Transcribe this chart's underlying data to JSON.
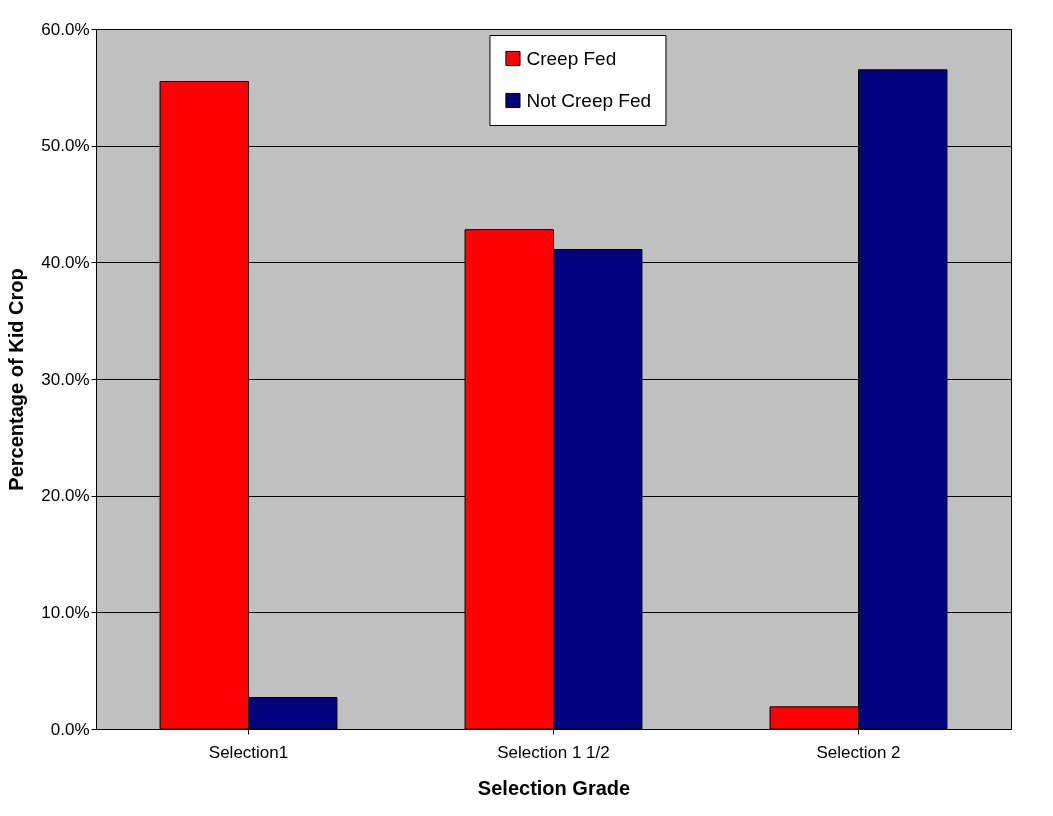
{
  "chart_data": {
    "type": "bar",
    "xlabel": "Selection Grade",
    "ylabel": "Percentage of Kid Crop",
    "categories": [
      "Selection1",
      "Selection 1 1/2",
      "Selection 2"
    ],
    "series": [
      {
        "name": "Creep Fed",
        "color": "#ff0000",
        "values": [
          55.5,
          42.8,
          1.9
        ]
      },
      {
        "name": "Not Creep Fed",
        "color": "#000080",
        "values": [
          2.7,
          41.1,
          56.5
        ]
      }
    ],
    "ylim": [
      0,
      60
    ],
    "yticks": [
      {
        "value": 0,
        "label": "0.0%"
      },
      {
        "value": 10,
        "label": "10.0%"
      },
      {
        "value": 20,
        "label": "20.0%"
      },
      {
        "value": 30,
        "label": "30.0%"
      },
      {
        "value": 40,
        "label": "40.0%"
      },
      {
        "value": 50,
        "label": "50.0%"
      },
      {
        "value": 60,
        "label": "60.0%"
      }
    ],
    "grid": true,
    "legend": "top"
  }
}
